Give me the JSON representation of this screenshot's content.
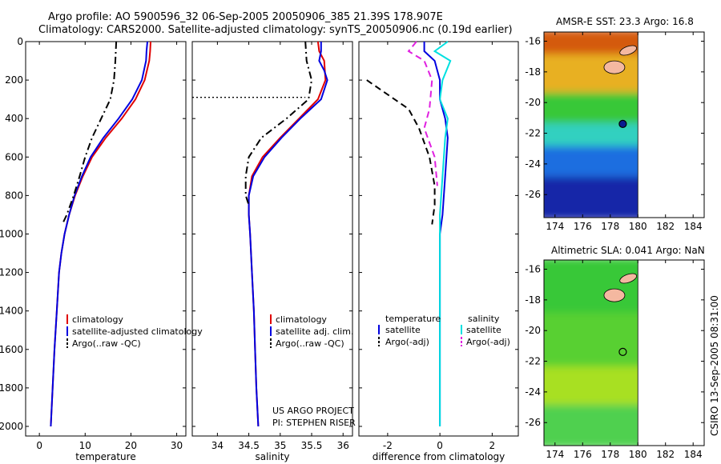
{
  "header": {
    "line1": "Argo profile: AO 5900596_32 06-Sep-2005 20050906_385 21.39S 178.907E",
    "line2": "Climatology: CARS2000. Satellite-adjusted climatology: synTS_20050906.nc (0.19d earlier)"
  },
  "footer": {
    "credit": "CSIRO 13-Sep-2005 08:31:00"
  },
  "chart_data": [
    {
      "type": "line",
      "xlabel": "temperature",
      "xlim": [
        -3,
        32
      ],
      "ylim": [
        2050,
        0
      ],
      "xticks": [
        0,
        10,
        20,
        30
      ],
      "yticks": [
        0,
        200,
        400,
        600,
        800,
        1000,
        1200,
        1400,
        1600,
        1800,
        2000
      ],
      "legend": {
        "placement": "lower-right",
        "entries": [
          "climatology",
          "satellite-adjusted climatology",
          "Argo(..raw -QC)"
        ]
      },
      "series": [
        {
          "name": "climatology",
          "color": "#e00000",
          "dash": "solid",
          "points": [
            [
              24.3,
              0
            ],
            [
              24.2,
              50
            ],
            [
              24.0,
              100
            ],
            [
              23.0,
              200
            ],
            [
              21.0,
              300
            ],
            [
              18.0,
              400
            ],
            [
              14.5,
              500
            ],
            [
              11.5,
              600
            ],
            [
              9.5,
              700
            ],
            [
              7.8,
              800
            ],
            [
              6.5,
              900
            ],
            [
              5.5,
              1000
            ],
            [
              4.8,
              1100
            ],
            [
              4.3,
              1200
            ],
            [
              3.8,
              1400
            ],
            [
              3.3,
              1600
            ],
            [
              2.9,
              1800
            ],
            [
              2.5,
              2000
            ]
          ]
        },
        {
          "name": "satellite-adjusted climatology",
          "color": "#0000e0",
          "dash": "solid",
          "points": [
            [
              23.6,
              0
            ],
            [
              23.4,
              50
            ],
            [
              23.3,
              100
            ],
            [
              22.4,
              200
            ],
            [
              20.3,
              300
            ],
            [
              17.3,
              400
            ],
            [
              14.0,
              500
            ],
            [
              11.2,
              600
            ],
            [
              9.3,
              700
            ],
            [
              7.7,
              800
            ],
            [
              6.5,
              900
            ],
            [
              5.5,
              1000
            ],
            [
              4.8,
              1100
            ],
            [
              4.3,
              1200
            ],
            [
              3.8,
              1400
            ],
            [
              3.3,
              1600
            ],
            [
              2.9,
              1800
            ],
            [
              2.5,
              2000
            ]
          ]
        },
        {
          "name": "Argo(..raw -QC)",
          "color": "#000000",
          "dash": "dashdot",
          "points": [
            [
              16.8,
              0
            ],
            [
              16.6,
              100
            ],
            [
              16.3,
              200
            ],
            [
              15.5,
              300
            ],
            [
              13.5,
              400
            ],
            [
              11.5,
              500
            ],
            [
              10.0,
              600
            ],
            [
              8.8,
              700
            ],
            [
              7.5,
              800
            ],
            [
              6.0,
              900
            ],
            [
              5.0,
              950
            ]
          ]
        }
      ]
    },
    {
      "type": "line",
      "xlabel": "salinity",
      "xlim": [
        33.6,
        36.15
      ],
      "ylim": [
        2050,
        0
      ],
      "xticks": [
        34,
        34.5,
        35,
        35.5,
        36
      ],
      "yticks": [
        0,
        200,
        400,
        600,
        800,
        1000,
        1200,
        1400,
        1600,
        1800,
        2000
      ],
      "legend": {
        "placement": "lower-right",
        "entries": [
          "climatology",
          "satellite adj. clim.",
          "Argo(..raw -QC)"
        ]
      },
      "annotations": [
        "US ARGO PROJECT",
        "PI: STEPHEN RISER"
      ],
      "series": [
        {
          "name": "climatology",
          "color": "#e00000",
          "dash": "solid",
          "points": [
            [
              35.6,
              0
            ],
            [
              35.62,
              50
            ],
            [
              35.7,
              100
            ],
            [
              35.72,
              200
            ],
            [
              35.6,
              300
            ],
            [
              35.3,
              400
            ],
            [
              35.0,
              500
            ],
            [
              34.72,
              600
            ],
            [
              34.55,
              700
            ],
            [
              34.5,
              800
            ],
            [
              34.5,
              900
            ],
            [
              34.52,
              1000
            ],
            [
              34.55,
              1200
            ],
            [
              34.58,
              1400
            ],
            [
              34.6,
              1600
            ],
            [
              34.62,
              1800
            ],
            [
              34.65,
              2000
            ]
          ]
        },
        {
          "name": "satellite adj. clim.",
          "color": "#0000e0",
          "dash": "solid",
          "points": [
            [
              35.65,
              0
            ],
            [
              35.65,
              50
            ],
            [
              35.62,
              100
            ],
            [
              35.7,
              150
            ],
            [
              35.75,
              200
            ],
            [
              35.65,
              300
            ],
            [
              35.32,
              400
            ],
            [
              35.02,
              500
            ],
            [
              34.75,
              600
            ],
            [
              34.57,
              700
            ],
            [
              34.5,
              800
            ],
            [
              34.5,
              900
            ],
            [
              34.52,
              1000
            ],
            [
              34.55,
              1200
            ],
            [
              34.58,
              1400
            ],
            [
              34.6,
              1600
            ],
            [
              34.62,
              1800
            ],
            [
              34.65,
              2000
            ]
          ]
        },
        {
          "name": "Argo(..raw -QC)",
          "color": "#000000",
          "dash": "dashdot",
          "points": [
            [
              35.4,
              0
            ],
            [
              35.42,
              100
            ],
            [
              35.5,
              200
            ],
            [
              35.45,
              300
            ],
            [
              35.1,
              400
            ],
            [
              34.7,
              500
            ],
            [
              34.5,
              600
            ],
            [
              34.45,
              700
            ],
            [
              34.45,
              800
            ],
            [
              34.5,
              850
            ]
          ]
        },
        {
          "name": "",
          "color": "#000000",
          "dash": "dotted",
          "points": [
            [
              33.6,
              290
            ],
            [
              35.4,
              290
            ]
          ]
        }
      ]
    },
    {
      "type": "line",
      "xlabel": "difference from climatology",
      "xlim": [
        -3.1,
        3.0
      ],
      "ylim": [
        2050,
        0
      ],
      "xticks": [
        -2,
        0,
        2
      ],
      "yticks": [
        0,
        200,
        400,
        600,
        800,
        1000,
        1200,
        1400,
        1600,
        1800,
        2000
      ],
      "legend": {
        "placement": "lower",
        "groups": [
          "temperature",
          "salinity"
        ],
        "entries": [
          "satellite",
          "Argo(-adj)",
          "satellite",
          "Argo(-adj)"
        ]
      },
      "series": [
        {
          "name": "temperature satellite",
          "color": "#0000e0",
          "dash": "solid",
          "points": [
            [
              -0.6,
              0
            ],
            [
              -0.6,
              50
            ],
            [
              -0.2,
              100
            ],
            [
              0.0,
              200
            ],
            [
              0.0,
              300
            ],
            [
              0.2,
              400
            ],
            [
              0.3,
              500
            ],
            [
              0.2,
              700
            ],
            [
              0.1,
              900
            ],
            [
              0.0,
              1000
            ],
            [
              0.0,
              2000
            ]
          ]
        },
        {
          "name": "temperature Argo(-adj)",
          "color": "#000000",
          "dash": "dashed",
          "points": [
            [
              -2.8,
              200
            ],
            [
              -1.2,
              350
            ],
            [
              -0.8,
              450
            ],
            [
              -0.4,
              600
            ],
            [
              -0.2,
              750
            ],
            [
              -0.2,
              850
            ],
            [
              -0.3,
              950
            ]
          ]
        },
        {
          "name": "salinity satellite",
          "color": "#00e0e0",
          "dash": "solid",
          "points": [
            [
              0.3,
              0
            ],
            [
              -0.2,
              50
            ],
            [
              0.4,
              100
            ],
            [
              0.1,
              200
            ],
            [
              0.0,
              300
            ],
            [
              0.3,
              400
            ],
            [
              0.2,
              500
            ],
            [
              0.1,
              700
            ],
            [
              0.0,
              900
            ],
            [
              0.0,
              2000
            ]
          ]
        },
        {
          "name": "salinity Argo(-adj)",
          "color": "#e020e0",
          "dash": "dashed",
          "points": [
            [
              -0.9,
              0
            ],
            [
              -1.2,
              50
            ],
            [
              -0.6,
              100
            ],
            [
              -0.3,
              200
            ],
            [
              -0.4,
              350
            ],
            [
              -0.6,
              450
            ],
            [
              -0.2,
              600
            ],
            [
              -0.1,
              750
            ]
          ]
        }
      ]
    },
    {
      "type": "heatmap",
      "title": "AMSR-E SST: 23.3 Argo: 16.8",
      "xlim": [
        173.2,
        184.8
      ],
      "ylim": [
        -27.5,
        -15.4
      ],
      "xticks": [
        174,
        176,
        178,
        180,
        182,
        184
      ],
      "yticks": [
        -16,
        -18,
        -20,
        -22,
        -24,
        -26
      ],
      "data_extent": {
        "x": [
          173.2,
          180
        ],
        "y": [
          -27.5,
          -15.4
        ]
      },
      "bands": [
        {
          "y": [
            -17.0,
            -15.4
          ],
          "color": "#d45a10"
        },
        {
          "y": [
            -19.5,
            -17.0
          ],
          "color": "#e8b020"
        },
        {
          "y": [
            -21.5,
            -19.5
          ],
          "color": "#38c838"
        },
        {
          "y": [
            -23.0,
            -21.5
          ],
          "color": "#30d0c0"
        },
        {
          "y": [
            -25.0,
            -23.0
          ],
          "color": "#1e6ee0"
        },
        {
          "y": [
            -27.5,
            -25.0
          ],
          "color": "#1428a8"
        }
      ],
      "marker": {
        "lon": 178.907,
        "lat": -21.39
      }
    },
    {
      "type": "heatmap",
      "title": "Altimetric SLA: 0.041 Argo: NaN",
      "xlim": [
        173.2,
        184.8
      ],
      "ylim": [
        -27.5,
        -15.4
      ],
      "xticks": [
        174,
        176,
        178,
        180,
        182,
        184
      ],
      "yticks": [
        -16,
        -18,
        -20,
        -22,
        -24,
        -26
      ],
      "data_extent": {
        "x": [
          173.2,
          180
        ],
        "y": [
          -27.5,
          -15.4
        ]
      },
      "bands": [
        {
          "y": [
            -19.0,
            -15.4
          ],
          "color": "#38c838"
        },
        {
          "y": [
            -22.5,
            -19.0
          ],
          "color": "#58d030"
        },
        {
          "y": [
            -25.0,
            -22.5
          ],
          "color": "#a8e020"
        },
        {
          "y": [
            -27.5,
            -25.0
          ],
          "color": "#50d050"
        }
      ],
      "marker": {
        "lon": 178.907,
        "lat": -21.39
      }
    }
  ]
}
